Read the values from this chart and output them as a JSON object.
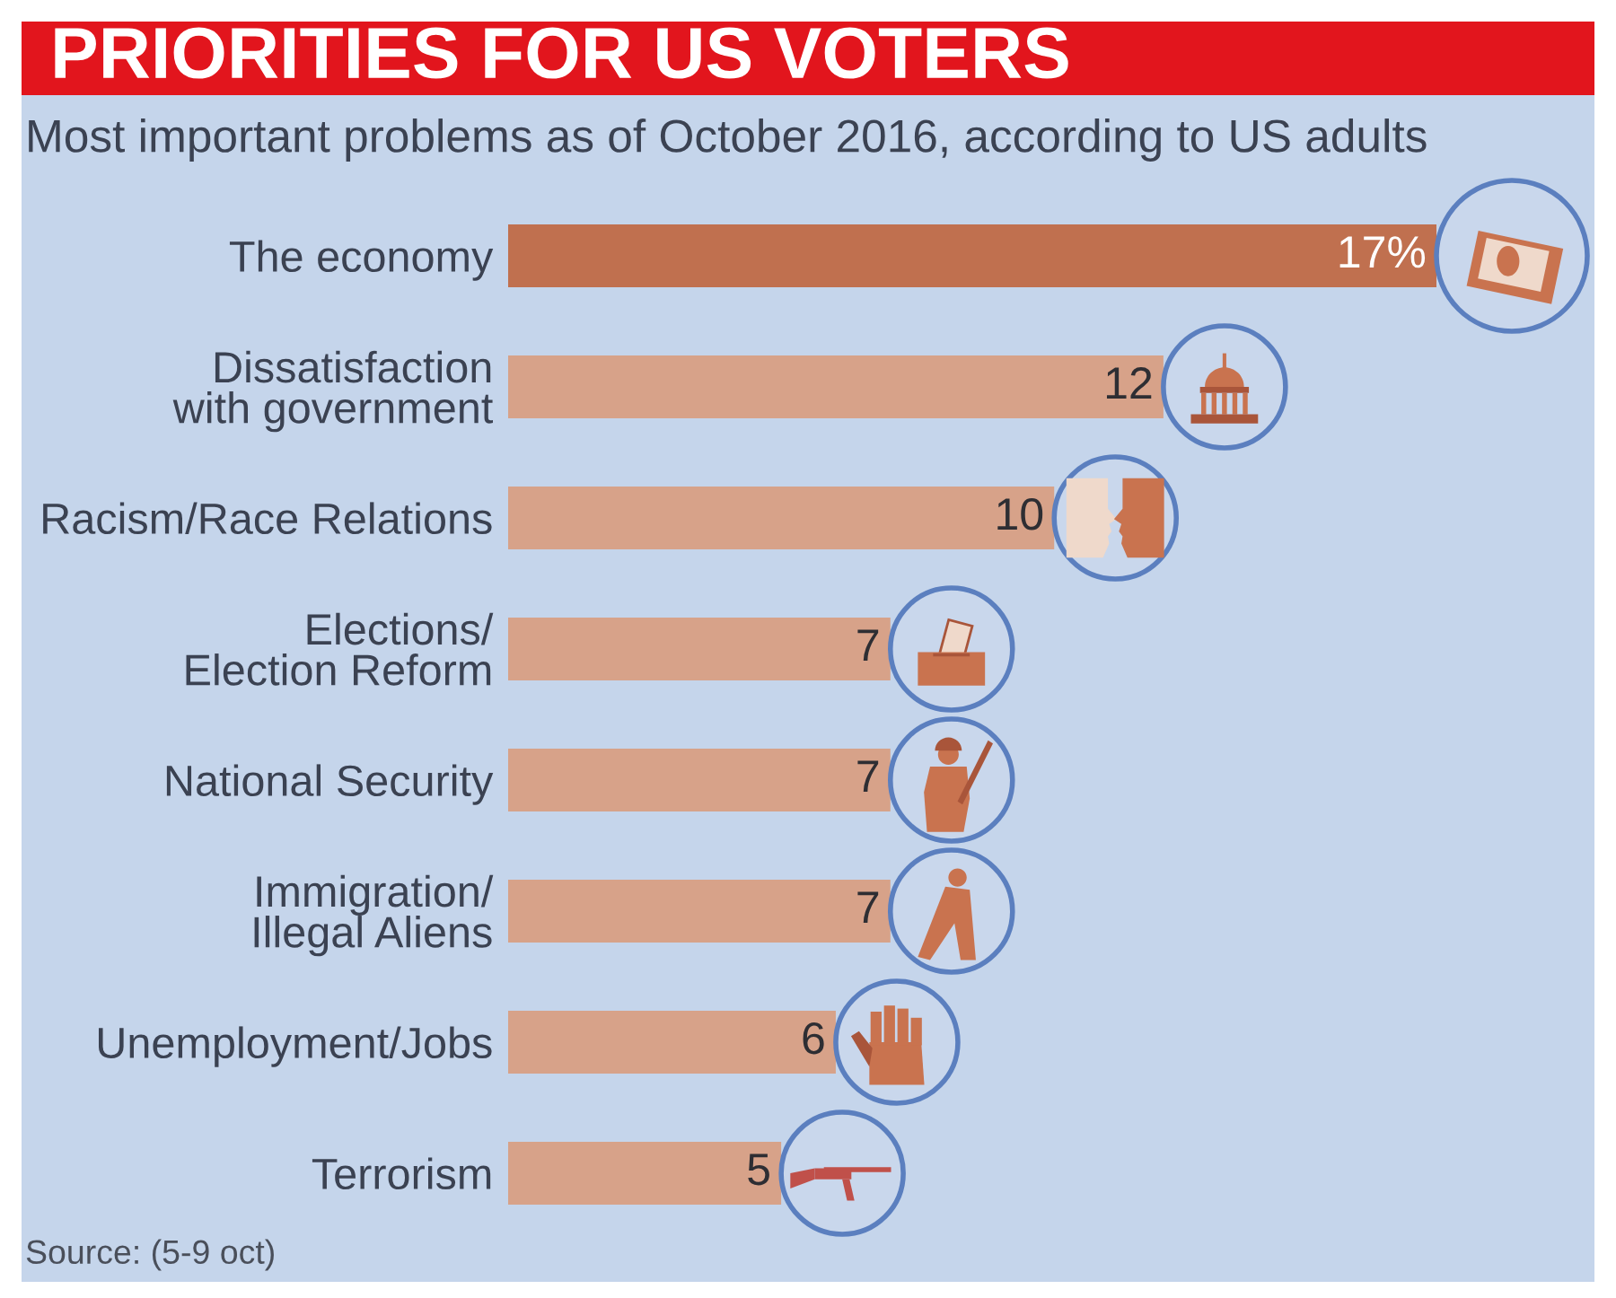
{
  "chart_data": {
    "type": "bar",
    "orientation": "horizontal",
    "title": "PRIORITIES FOR US VOTERS",
    "subtitle": "Most important problems as of October 2016, according to US adults",
    "categories": [
      "The economy",
      "Dissatisfaction\nwith government",
      "Racism/Race Relations",
      "Elections/\nElection Reform",
      "National Security",
      "Immigration/\nIllegal Aliens",
      "Unemployment/Jobs",
      "Terrorism"
    ],
    "values": [
      17,
      12,
      10,
      7,
      7,
      7,
      6,
      5
    ],
    "colors": [
      "#c0704f",
      "#d7a289",
      "#d7a289",
      "#d7a289",
      "#d7a289",
      "#d7a289",
      "#d7a289",
      "#d7a289"
    ],
    "value_labels": [
      "17%",
      "12",
      "10",
      "7",
      "7",
      "7",
      "6",
      "5"
    ],
    "tick_labels": "y",
    "annotations": [
      "Source: (5-9 oct)"
    ]
  }
}
